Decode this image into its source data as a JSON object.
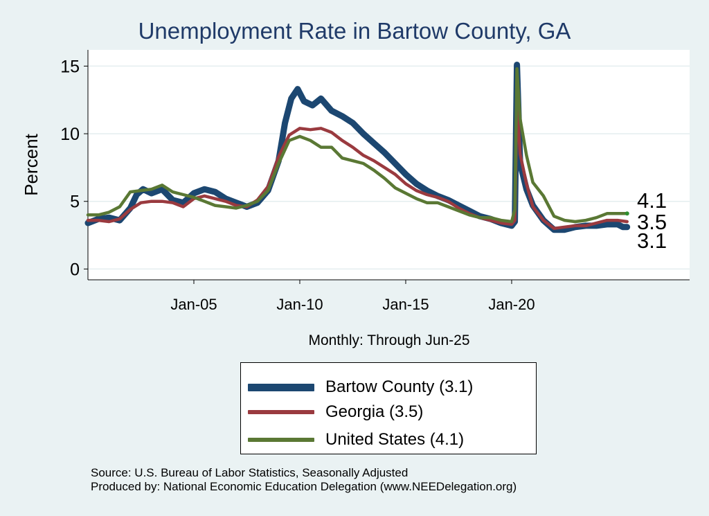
{
  "chart_data": {
    "type": "line",
    "title": "Unemployment Rate in Bartow  County, GA",
    "subtitle": "Monthly: Through Jun-25",
    "ylabel": "Percent",
    "xlabel": "",
    "xlim": [
      2000.0,
      2028.4
    ],
    "ylim": [
      -0.8,
      16.2
    ],
    "x_ticks": [
      {
        "label": "Jan-05",
        "value": 2005
      },
      {
        "label": "Jan-10",
        "value": 2010
      },
      {
        "label": "Jan-15",
        "value": 2015
      },
      {
        "label": "Jan-20",
        "value": 2020
      }
    ],
    "y_ticks": [
      0,
      5,
      10,
      15
    ],
    "grid": true,
    "legend_position": "bottom",
    "series": [
      {
        "name": "Bartow  County (3.1)",
        "color": "#1c4771",
        "end_label": "3.1",
        "points": [
          [
            2000.0,
            3.4
          ],
          [
            2000.5,
            3.7
          ],
          [
            2001.0,
            3.8
          ],
          [
            2001.5,
            3.6
          ],
          [
            2002.0,
            4.5
          ],
          [
            2002.3,
            5.5
          ],
          [
            2002.6,
            5.9
          ],
          [
            2003.0,
            5.6
          ],
          [
            2003.5,
            5.9
          ],
          [
            2004.0,
            5.1
          ],
          [
            2004.5,
            4.9
          ],
          [
            2005.0,
            5.6
          ],
          [
            2005.5,
            5.9
          ],
          [
            2006.0,
            5.7
          ],
          [
            2006.5,
            5.2
          ],
          [
            2007.0,
            4.9
          ],
          [
            2007.5,
            4.6
          ],
          [
            2008.0,
            4.9
          ],
          [
            2008.5,
            5.8
          ],
          [
            2009.0,
            8.0
          ],
          [
            2009.3,
            10.8
          ],
          [
            2009.6,
            12.6
          ],
          [
            2009.9,
            13.3
          ],
          [
            2010.2,
            12.4
          ],
          [
            2010.6,
            12.1
          ],
          [
            2011.0,
            12.6
          ],
          [
            2011.5,
            11.7
          ],
          [
            2012.0,
            11.3
          ],
          [
            2012.5,
            10.8
          ],
          [
            2013.0,
            10.0
          ],
          [
            2013.5,
            9.3
          ],
          [
            2014.0,
            8.6
          ],
          [
            2014.5,
            7.8
          ],
          [
            2015.0,
            7.0
          ],
          [
            2015.5,
            6.3
          ],
          [
            2016.0,
            5.8
          ],
          [
            2016.5,
            5.4
          ],
          [
            2017.0,
            5.1
          ],
          [
            2017.5,
            4.7
          ],
          [
            2018.0,
            4.3
          ],
          [
            2018.5,
            3.9
          ],
          [
            2019.0,
            3.7
          ],
          [
            2019.5,
            3.4
          ],
          [
            2020.0,
            3.2
          ],
          [
            2020.15,
            3.5
          ],
          [
            2020.25,
            15.1
          ],
          [
            2020.4,
            7.8
          ],
          [
            2020.7,
            5.9
          ],
          [
            2021.0,
            4.7
          ],
          [
            2021.5,
            3.6
          ],
          [
            2022.0,
            2.9
          ],
          [
            2022.5,
            2.9
          ],
          [
            2023.0,
            3.1
          ],
          [
            2023.5,
            3.2
          ],
          [
            2024.0,
            3.2
          ],
          [
            2024.5,
            3.3
          ],
          [
            2025.0,
            3.3
          ],
          [
            2025.25,
            3.1
          ],
          [
            2025.45,
            3.1
          ]
        ]
      },
      {
        "name": "Georgia (3.5)",
        "color": "#9a3a3f",
        "end_label": "3.5",
        "points": [
          [
            2000.0,
            3.6
          ],
          [
            2000.5,
            3.6
          ],
          [
            2001.0,
            3.5
          ],
          [
            2001.5,
            3.7
          ],
          [
            2002.0,
            4.4
          ],
          [
            2002.5,
            4.9
          ],
          [
            2003.0,
            5.0
          ],
          [
            2003.5,
            5.0
          ],
          [
            2004.0,
            4.9
          ],
          [
            2004.5,
            4.6
          ],
          [
            2005.0,
            5.2
          ],
          [
            2005.5,
            5.4
          ],
          [
            2006.0,
            5.2
          ],
          [
            2006.5,
            5.0
          ],
          [
            2007.0,
            4.7
          ],
          [
            2007.5,
            4.6
          ],
          [
            2008.0,
            5.1
          ],
          [
            2008.5,
            6.1
          ],
          [
            2009.0,
            8.3
          ],
          [
            2009.5,
            9.9
          ],
          [
            2010.0,
            10.4
          ],
          [
            2010.5,
            10.3
          ],
          [
            2011.0,
            10.4
          ],
          [
            2011.5,
            10.1
          ],
          [
            2012.0,
            9.5
          ],
          [
            2012.5,
            9.0
          ],
          [
            2013.0,
            8.4
          ],
          [
            2013.5,
            8.0
          ],
          [
            2014.0,
            7.5
          ],
          [
            2014.5,
            7.0
          ],
          [
            2015.0,
            6.3
          ],
          [
            2015.5,
            5.8
          ],
          [
            2016.0,
            5.5
          ],
          [
            2016.5,
            5.3
          ],
          [
            2017.0,
            5.0
          ],
          [
            2017.5,
            4.5
          ],
          [
            2018.0,
            4.1
          ],
          [
            2018.5,
            3.8
          ],
          [
            2019.0,
            3.6
          ],
          [
            2019.5,
            3.4
          ],
          [
            2020.0,
            3.3
          ],
          [
            2020.15,
            3.6
          ],
          [
            2020.25,
            12.4
          ],
          [
            2020.4,
            8.5
          ],
          [
            2020.7,
            6.3
          ],
          [
            2021.0,
            4.6
          ],
          [
            2021.5,
            3.6
          ],
          [
            2022.0,
            3.0
          ],
          [
            2022.5,
            3.1
          ],
          [
            2023.0,
            3.2
          ],
          [
            2023.5,
            3.2
          ],
          [
            2024.0,
            3.4
          ],
          [
            2024.5,
            3.6
          ],
          [
            2025.0,
            3.6
          ],
          [
            2025.45,
            3.5
          ]
        ]
      },
      {
        "name": "United States (4.1)",
        "color": "#5a7834",
        "end_label": "4.1",
        "points": [
          [
            2000.0,
            4.0
          ],
          [
            2000.5,
            4.0
          ],
          [
            2001.0,
            4.2
          ],
          [
            2001.5,
            4.6
          ],
          [
            2002.0,
            5.7
          ],
          [
            2002.5,
            5.8
          ],
          [
            2003.0,
            5.9
          ],
          [
            2003.5,
            6.2
          ],
          [
            2004.0,
            5.7
          ],
          [
            2004.5,
            5.5
          ],
          [
            2005.0,
            5.3
          ],
          [
            2005.5,
            5.0
          ],
          [
            2006.0,
            4.7
          ],
          [
            2006.5,
            4.6
          ],
          [
            2007.0,
            4.5
          ],
          [
            2007.5,
            4.7
          ],
          [
            2008.0,
            5.0
          ],
          [
            2008.5,
            5.8
          ],
          [
            2009.0,
            7.8
          ],
          [
            2009.5,
            9.5
          ],
          [
            2010.0,
            9.8
          ],
          [
            2010.5,
            9.5
          ],
          [
            2011.0,
            9.0
          ],
          [
            2011.5,
            9.0
          ],
          [
            2012.0,
            8.2
          ],
          [
            2012.5,
            8.0
          ],
          [
            2013.0,
            7.8
          ],
          [
            2013.5,
            7.3
          ],
          [
            2014.0,
            6.7
          ],
          [
            2014.5,
            6.0
          ],
          [
            2015.0,
            5.6
          ],
          [
            2015.5,
            5.2
          ],
          [
            2016.0,
            4.9
          ],
          [
            2016.5,
            4.9
          ],
          [
            2017.0,
            4.6
          ],
          [
            2017.5,
            4.3
          ],
          [
            2018.0,
            4.0
          ],
          [
            2018.5,
            3.8
          ],
          [
            2019.0,
            3.8
          ],
          [
            2019.5,
            3.6
          ],
          [
            2020.0,
            3.5
          ],
          [
            2020.15,
            4.4
          ],
          [
            2020.25,
            14.8
          ],
          [
            2020.4,
            11.1
          ],
          [
            2020.7,
            8.4
          ],
          [
            2021.0,
            6.4
          ],
          [
            2021.5,
            5.4
          ],
          [
            2022.0,
            3.9
          ],
          [
            2022.5,
            3.6
          ],
          [
            2023.0,
            3.5
          ],
          [
            2023.5,
            3.6
          ],
          [
            2024.0,
            3.8
          ],
          [
            2024.5,
            4.1
          ],
          [
            2025.0,
            4.1
          ],
          [
            2025.45,
            4.1
          ]
        ]
      }
    ]
  },
  "legend": {
    "items": [
      {
        "label": "Bartow  County (3.1)",
        "color": "#1c4771"
      },
      {
        "label": "Georgia (3.5)",
        "color": "#9a3a3f"
      },
      {
        "label": "United States (4.1)",
        "color": "#5a7834"
      }
    ]
  },
  "footer": {
    "line1": "Source: U.S. Bureau of Labor Statistics, Seasonally Adjusted",
    "line2": "Produced by: National Economic Education Delegation (www.NEEDelegation.org)"
  }
}
